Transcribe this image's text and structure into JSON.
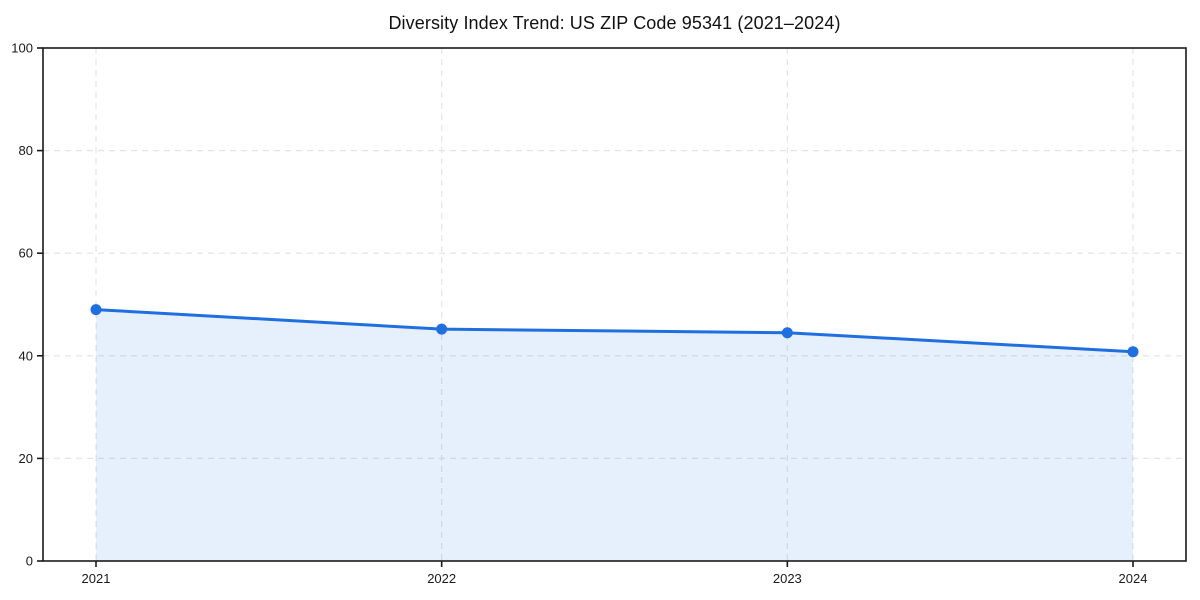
{
  "chart_data": {
    "type": "line",
    "title": "Diversity Index Trend: US ZIP Code 95341 (2021–2024)",
    "series_name": "Diversity Index",
    "categories": [
      "2021",
      "2022",
      "2023",
      "2024"
    ],
    "values": [
      49.0,
      45.2,
      44.5,
      40.8
    ],
    "xlabel": "",
    "ylabel": "",
    "ylim": [
      0,
      100
    ],
    "y_ticks": [
      0,
      20,
      40,
      60,
      80,
      100
    ],
    "x_ticks": [
      "2021",
      "2022",
      "2023",
      "2024"
    ],
    "grid": true,
    "legend": false,
    "area_fill": true,
    "marker": "circle",
    "colors": {
      "line": "#1f6fe0",
      "marker": "#1f6fe0",
      "area": "rgba(31,111,224,0.11)",
      "grid": "#e4e4e4",
      "axis": "#1a1a1a",
      "tick_text": "#1a1a1a",
      "background": "#ffffff"
    }
  }
}
